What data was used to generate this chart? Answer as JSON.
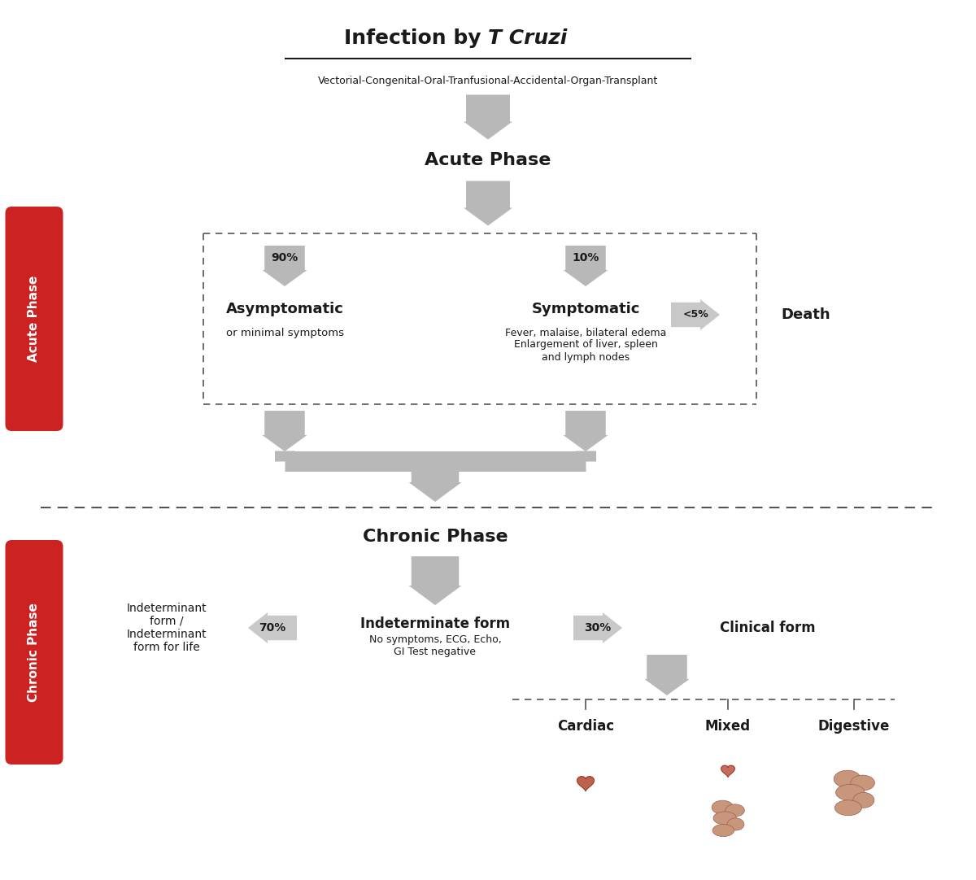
{
  "bg_color": "#ffffff",
  "arrow_color": "#c0c0c0",
  "arrow_dark": "#a0a0a0",
  "red_color": "#cc2222",
  "text_black": "#1a1a1a",
  "dashed_color": "#555555",
  "title_infection": "Infection by ",
  "title_infection_italic": "T Cruzi",
  "subtitle_infection": "Vectorial-Congenital-Oral-Tranfusional-Accidental-Organ-Transplant",
  "acute_phase_label": "Acute Phase",
  "chronic_phase_label": "Chronic Phase",
  "side_label_acute": "Acute Phase",
  "side_label_chronic": "Chronic Phase",
  "pct_90": "90%",
  "pct_10": "10%",
  "pct_5": "<5%",
  "pct_70": "70%",
  "pct_30": "30%",
  "asymptomatic_title": "Asymptomatic",
  "asymptomatic_sub": "or minimal symptoms",
  "symptomatic_title": "Symptomatic",
  "symptomatic_sub": "Fever, malaise, bilateral edema\nEnlargement of liver, spleen\nand lymph nodes",
  "death_label": "Death",
  "indeterminate_left_title": "Indeterminate form",
  "indeterminate_left_sub": "No symptoms, ECG, Echo,\nGI Test negative",
  "indeterminate_right_title": "Indeterminant\nform /\nIndeterminant\nform for life",
  "clinical_form_title": "Clinical form",
  "cardiac_label": "Cardiac",
  "mixed_label": "Mixed",
  "digestive_label": "Digestive"
}
